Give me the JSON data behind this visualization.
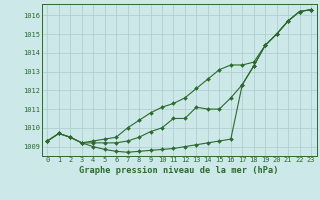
{
  "x": [
    0,
    1,
    2,
    3,
    4,
    5,
    6,
    7,
    8,
    9,
    10,
    11,
    12,
    13,
    14,
    15,
    16,
    17,
    18,
    19,
    20,
    21,
    22,
    23
  ],
  "y_low": [
    1009.3,
    1009.7,
    1009.5,
    1009.2,
    1009.0,
    1008.85,
    1008.75,
    1008.7,
    1008.75,
    1008.8,
    1008.85,
    1008.9,
    1009.0,
    1009.1,
    1009.2,
    1009.3,
    1009.4,
    1012.3,
    1013.3,
    1014.4,
    1015.0,
    1015.7,
    1016.2,
    1016.3
  ],
  "y_mid": [
    1009.3,
    1009.7,
    1009.5,
    1009.2,
    1009.2,
    1009.2,
    1009.2,
    1009.3,
    1009.5,
    1009.8,
    1010.0,
    1010.5,
    1010.5,
    1011.1,
    1011.0,
    1011.0,
    1011.6,
    1012.3,
    1013.3,
    1014.4,
    1015.0,
    1015.7,
    1016.2,
    1016.3
  ],
  "y_high": [
    1009.3,
    1009.7,
    1009.5,
    1009.2,
    1009.3,
    1009.4,
    1009.5,
    1010.0,
    1010.4,
    1010.8,
    1011.1,
    1011.3,
    1011.6,
    1012.1,
    1012.6,
    1013.1,
    1013.35,
    1013.35,
    1013.5,
    1014.4,
    1015.0,
    1015.7,
    1016.2,
    1016.3
  ],
  "ylim": [
    1008.5,
    1016.6
  ],
  "yticks": [
    1009,
    1010,
    1011,
    1012,
    1013,
    1014,
    1015,
    1016
  ],
  "xticks": [
    0,
    1,
    2,
    3,
    4,
    5,
    6,
    7,
    8,
    9,
    10,
    11,
    12,
    13,
    14,
    15,
    16,
    17,
    18,
    19,
    20,
    21,
    22,
    23
  ],
  "xlabel": "Graphe pression niveau de la mer (hPa)",
  "line_color": "#2d6a2d",
  "bg_color": "#cce8e8",
  "grid_color": "#aacccc",
  "marker": "D",
  "marker_size": 2.0,
  "linewidth": 0.8,
  "tick_fontsize": 5.0,
  "xlabel_fontsize": 6.2
}
